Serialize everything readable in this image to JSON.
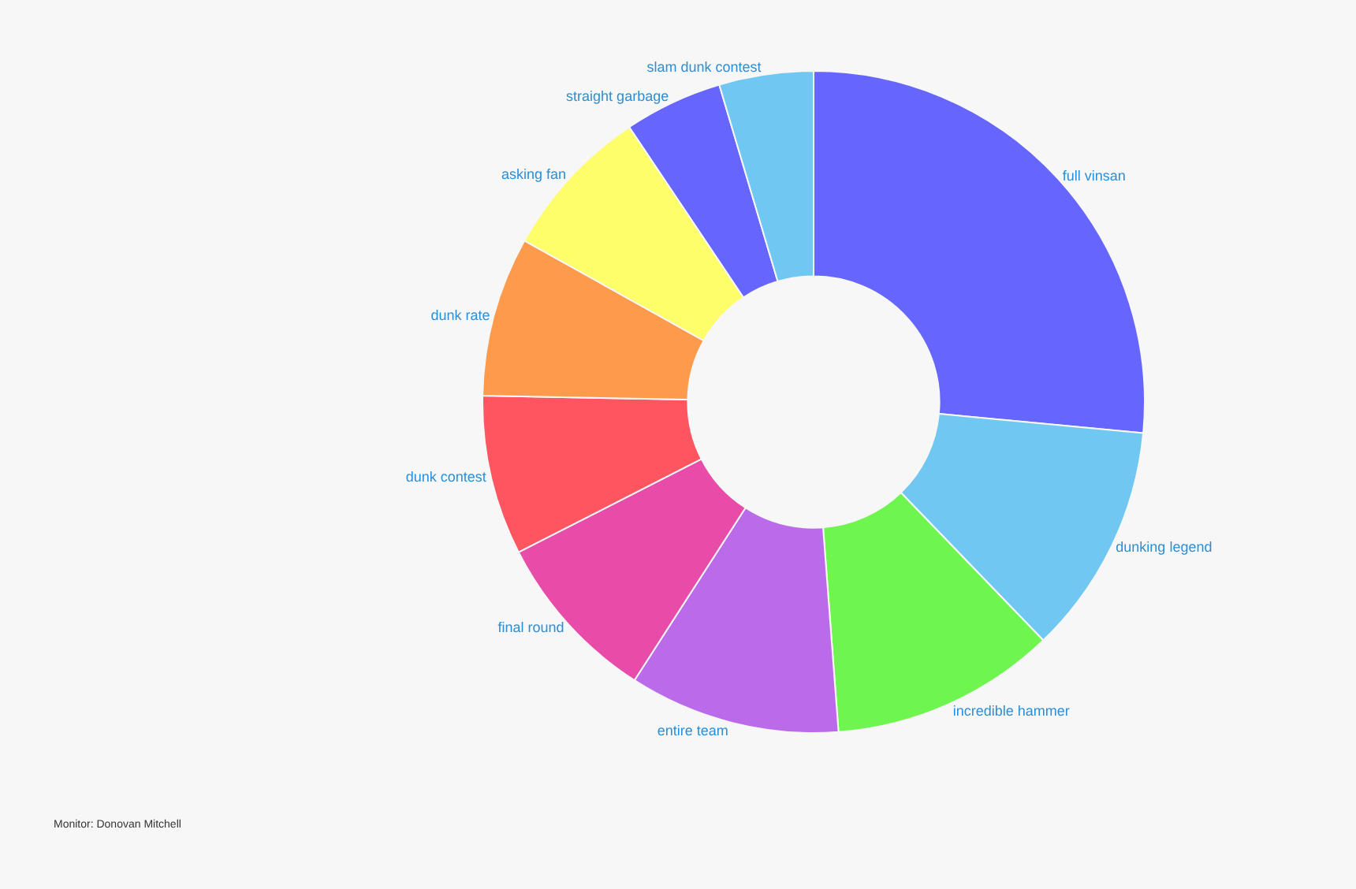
{
  "chart_data": {
    "type": "donut",
    "categories": [
      "full vinsan",
      "dunking legend",
      "incredible hammer",
      "entire team",
      "final round",
      "dunk contest",
      "dunk rate",
      "asking fan",
      "straight garbage",
      "slam dunk contest"
    ],
    "values": [
      26.5,
      11.3,
      11,
      10.3,
      8.4,
      7.8,
      7.8,
      7.5,
      4.8,
      4.6
    ],
    "colors": [
      "#6666ff",
      "#70c8f2",
      "#6ef54f",
      "#bb6bea",
      "#e84ca8",
      "#fe5560",
      "#fe9a4c",
      "#fefe6a",
      "#6666ff",
      "#70c8f2"
    ],
    "annotations": [
      "Monitor: Donovan Mitchell"
    ],
    "legend": false
  }
}
